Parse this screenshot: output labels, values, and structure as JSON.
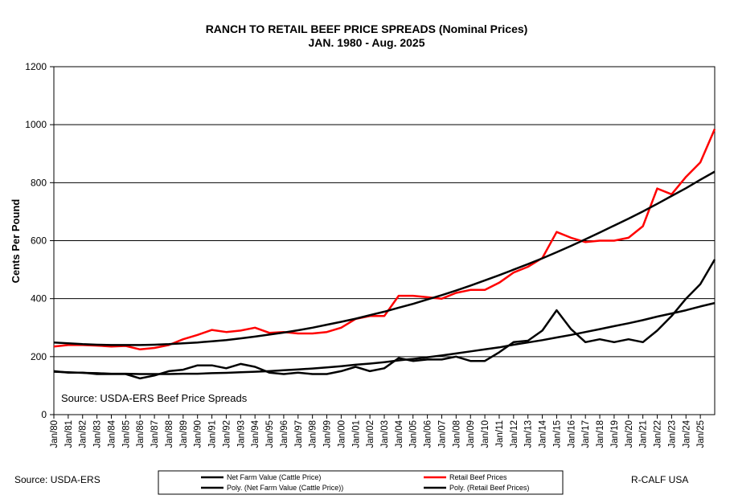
{
  "chart_data": {
    "type": "line",
    "title": "RANCH TO RETAIL BEEF PRICE SPREADS (Nominal Prices)",
    "subtitle": "JAN. 1980 - Aug. 2025",
    "y_label": "Cents Per Pound",
    "annotation": "Source:  USDA-ERS Beef Price Spreads",
    "source": "Source: USDA-ERS",
    "credit": "R-CALF USA",
    "categories": [
      "Jan/80",
      "Jan/81",
      "Jan/82",
      "Jan/83",
      "Jan/84",
      "Jan/85",
      "Jan/86",
      "Jan/87",
      "Jan/88",
      "Jan/89",
      "Jan/90",
      "Jan/91",
      "Jan/92",
      "Jan/93",
      "Jan/94",
      "Jan/95",
      "Jan/96",
      "Jan/97",
      "Jan/98",
      "Jan/99",
      "Jan/00",
      "Jan/01",
      "Jan/02",
      "Jan/03",
      "Jan/04",
      "Jan/05",
      "Jan/06",
      "Jan/07",
      "Jan/08",
      "Jan/09",
      "Jan/10",
      "Jan/11",
      "Jan/12",
      "Jan/13",
      "Jan/14",
      "Jan/15",
      "Jan/16",
      "Jan/17",
      "Jan/18",
      "Jan/19",
      "Jan/20",
      "Jan/21",
      "Jan/22",
      "Jan/23",
      "Jan/24",
      "Jan/25",
      null
    ],
    "series": [
      {
        "name": "Net Farm Value (Cattle Price)",
        "color": "#000000",
        "values": [
          150,
          145,
          145,
          140,
          140,
          140,
          125,
          135,
          150,
          155,
          170,
          170,
          160,
          175,
          165,
          145,
          140,
          145,
          140,
          140,
          150,
          165,
          150,
          160,
          195,
          185,
          190,
          190,
          200,
          185,
          185,
          215,
          250,
          255,
          290,
          360,
          295,
          250,
          260,
          250,
          260,
          250,
          290,
          340,
          400,
          450,
          535
        ]
      },
      {
        "name": "Retail Beef Prices",
        "color": "#ff0000",
        "values": [
          235,
          240,
          240,
          238,
          235,
          237,
          225,
          230,
          240,
          260,
          275,
          292,
          285,
          290,
          300,
          282,
          285,
          280,
          280,
          285,
          300,
          330,
          340,
          340,
          410,
          410,
          405,
          400,
          420,
          430,
          430,
          455,
          490,
          510,
          540,
          630,
          610,
          595,
          600,
          600,
          610,
          650,
          780,
          760,
          820,
          870,
          985
        ]
      },
      {
        "name": "Poly. (Net Farm Value (Cattle Price))",
        "color": "#000000",
        "values": [
          148,
          146,
          144,
          143,
          141,
          141,
          140,
          140,
          140,
          141,
          141,
          143,
          144,
          146,
          148,
          150,
          153,
          156,
          159,
          163,
          167,
          172,
          176,
          181,
          187,
          192,
          198,
          204,
          211,
          218,
          225,
          232,
          241,
          249,
          257,
          266,
          275,
          285,
          295,
          305,
          315,
          326,
          338,
          349,
          360,
          373,
          385
        ]
      },
      {
        "name": "Poly. (Retail Beef Prices)",
        "color": "#000000",
        "values": [
          249,
          246,
          243,
          241,
          240,
          240,
          240,
          241,
          243,
          246,
          249,
          253,
          257,
          263,
          269,
          276,
          283,
          291,
          300,
          310,
          320,
          331,
          343,
          355,
          369,
          382,
          397,
          412,
          428,
          445,
          463,
          481,
          500,
          519,
          539,
          560,
          582,
          605,
          628,
          652,
          676,
          701,
          727,
          754,
          781,
          810,
          838
        ]
      }
    ],
    "ylim": [
      0,
      1200
    ],
    "yticks": [
      0,
      200,
      400,
      600,
      800,
      1000,
      1200
    ],
    "grid": true
  }
}
